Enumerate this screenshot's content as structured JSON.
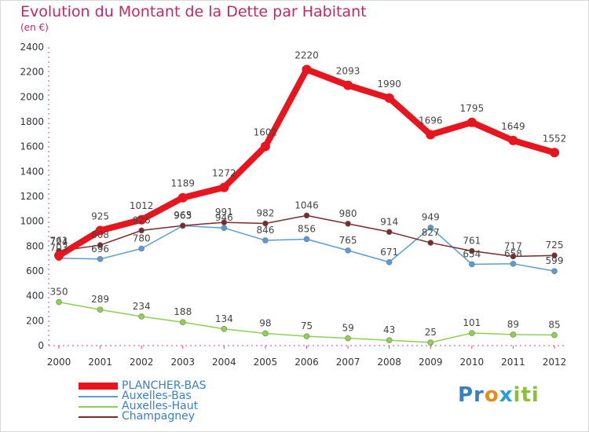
{
  "header": {
    "title": "Evolution du Montant de la Dette par Habitant",
    "subtitle": "(en €)"
  },
  "logo": {
    "text": "Proxiti",
    "parts": [
      "Pr",
      "o",
      "x",
      "iti"
    ]
  },
  "chart_data": {
    "type": "line",
    "title": "Evolution du Montant de la Dette par Habitant",
    "subtitle": "(en €)",
    "xlabel": "",
    "ylabel": "",
    "x": [
      "2000",
      "2001",
      "2002",
      "2003",
      "2004",
      "2005",
      "2006",
      "2007",
      "2008",
      "2009",
      "2010",
      "2011",
      "2012"
    ],
    "ylim": [
      0,
      2400
    ],
    "yticks": [
      0,
      200,
      400,
      600,
      800,
      1000,
      1200,
      1400,
      1600,
      1800,
      2000,
      2200,
      2400
    ],
    "grid": false,
    "legend_position": "bottom-left",
    "series": [
      {
        "name": "PLANCHER-BAS",
        "color": "#e8141e",
        "width": "thick",
        "values": [
          724,
          925,
          1012,
          1189,
          1272,
          1602,
          2220,
          2093,
          1990,
          1696,
          1795,
          1649,
          1552
        ],
        "labels": [
          "724",
          "925",
          "1012",
          "1189",
          "1272",
          "1602",
          "2220",
          "2093",
          "1990",
          "1696",
          "1795",
          "1649",
          "1552"
        ]
      },
      {
        "name": "Auxelles-Bas",
        "color": "#5b9bd5",
        "width": "thin",
        "values": [
          703,
          696,
          780,
          963,
          946,
          846,
          856,
          765,
          671,
          949,
          654,
          658,
          599
        ],
        "labels": [
          "703",
          "696",
          "780",
          "963",
          "946",
          "846",
          "856",
          "765",
          "671",
          "949",
          "654",
          "658",
          "599"
        ]
      },
      {
        "name": "Auxelles-Haut",
        "color": "#8ed14f",
        "width": "thin",
        "values": [
          350,
          289,
          234,
          188,
          134,
          98,
          75,
          59,
          43,
          25,
          101,
          89,
          85
        ],
        "labels": [
          "350",
          "289",
          "234",
          "188",
          "134",
          "98",
          "75",
          "59",
          "43",
          "25",
          "101",
          "89",
          "85"
        ]
      },
      {
        "name": "Champagney",
        "color": "#7a2a2a",
        "width": "thin",
        "values": [
          761,
          808,
          926,
          965,
          991,
          982,
          1046,
          980,
          914,
          827,
          761,
          717,
          725
        ],
        "labels": [
          "761",
          "808",
          "926",
          "965",
          "991",
          "982",
          "1046",
          "980",
          "914",
          "827",
          "761",
          "717",
          "725"
        ]
      }
    ]
  }
}
